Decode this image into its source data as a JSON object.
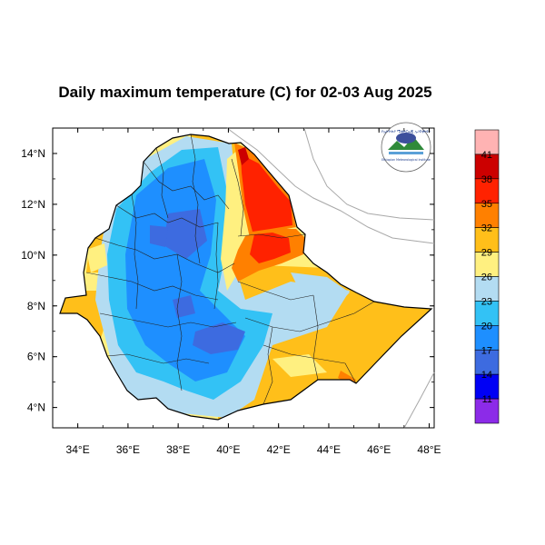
{
  "title": "Daily maximum temperature (C) for 02-03 Aug 2025",
  "map": {
    "lon_range": [
      33,
      48.2
    ],
    "lat_range": [
      3.2,
      15
    ],
    "lon_ticks": [
      34,
      36,
      38,
      40,
      42,
      44,
      46,
      48
    ],
    "lat_ticks": [
      4,
      6,
      8,
      10,
      12,
      14
    ],
    "lon_tick_labels": [
      "34°E",
      "36°E",
      "38°E",
      "40°E",
      "42°E",
      "44°E",
      "46°E",
      "48°E"
    ],
    "lat_tick_labels": [
      "4°N",
      "6°N",
      "8°N",
      "10°N",
      "12°N",
      "14°N"
    ]
  },
  "colorbar": {
    "labels": [
      "41",
      "38",
      "35",
      "32",
      "29",
      "26",
      "23",
      "20",
      "17",
      "14",
      "11"
    ],
    "colors": [
      "#ffb3b3",
      "#cc0000",
      "#ff2200",
      "#ff8000",
      "#ffbf1a",
      "#fff080",
      "#b3dcf2",
      "#33c2f5",
      "#1e8fff",
      "#3d6be0",
      "#0000f5",
      "#8c2be8"
    ]
  },
  "logo": {
    "text_top": "የኢትዮጵያ ሜቲዎሮሎጂ ኢንስቲትዩት",
    "text_bottom": "Ethiopian Meteorological Institute"
  }
}
